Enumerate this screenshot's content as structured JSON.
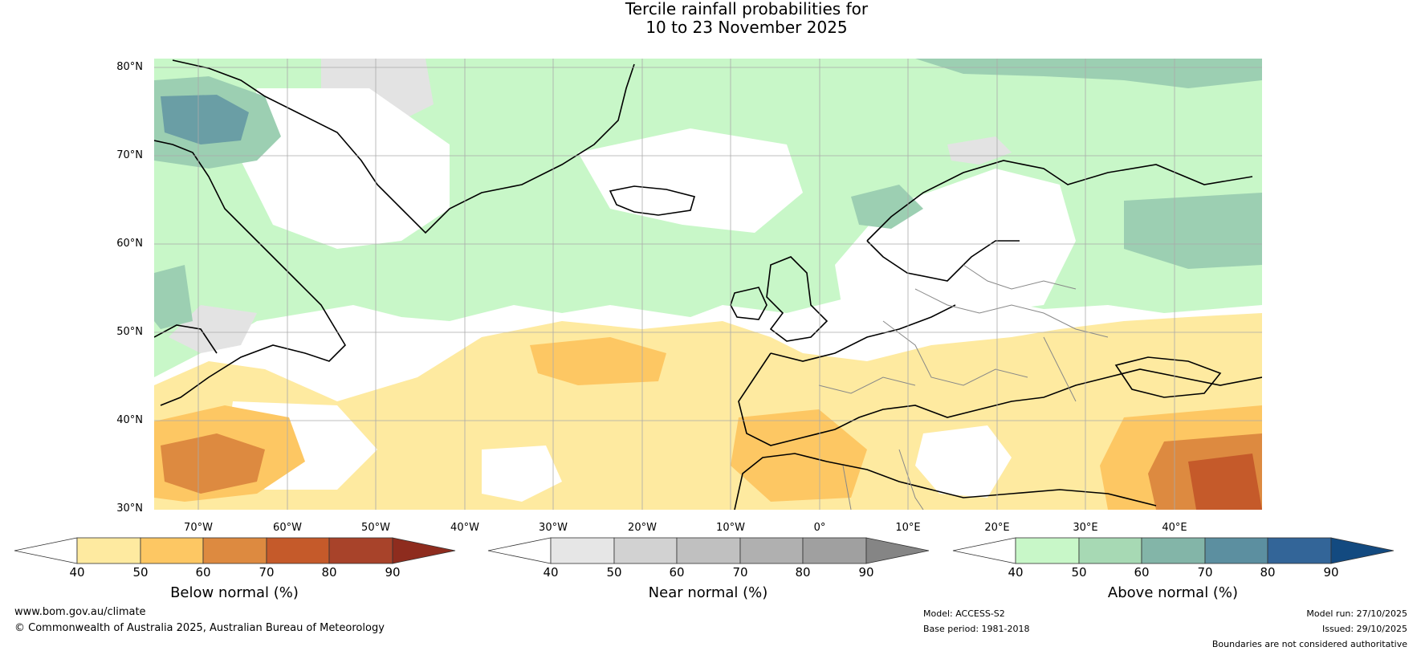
{
  "title": {
    "line1": "Tercile rainfall probabilities for",
    "line2": "10 to 23 November 2025"
  },
  "map": {
    "lat_labels": [
      "80°N",
      "70°N",
      "60°N",
      "50°N",
      "40°N",
      "30°N"
    ],
    "lon_labels": [
      "70°W",
      "60°W",
      "50°W",
      "40°W",
      "30°W",
      "20°W",
      "10°W",
      "0°",
      "10°E",
      "20°E",
      "30°E",
      "40°E"
    ],
    "colors": {
      "land_outline": "#000000",
      "borders": "#888888",
      "gridlines": "#aaaaaa"
    }
  },
  "legends": [
    {
      "label": "Below normal (%)",
      "ticks": [
        "40",
        "50",
        "60",
        "70",
        "80",
        "90"
      ],
      "colors": [
        "#ffffff",
        "#feeaa0",
        "#fdc763",
        "#dd8a40",
        "#c55a2a",
        "#a8432a",
        "#8e2c1e"
      ]
    },
    {
      "label": "Near normal (%)",
      "ticks": [
        "40",
        "50",
        "60",
        "70",
        "80",
        "90"
      ],
      "colors": [
        "#ffffff",
        "#e6e6e6",
        "#d2d2d2",
        "#c0c0c0",
        "#b0b0b0",
        "#a0a0a0",
        "#858585"
      ]
    },
    {
      "label": "Above normal (%)",
      "ticks": [
        "40",
        "50",
        "60",
        "70",
        "80",
        "90"
      ],
      "colors": [
        "#ffffff",
        "#c8f7c8",
        "#a7d9b4",
        "#83b5a8",
        "#5c8fa0",
        "#336598",
        "#134a80"
      ]
    }
  ],
  "footer": {
    "website": "www.bom.gov.au/climate",
    "copyright": "© Commonwealth of Australia 2025, Australian Bureau of Meteorology",
    "model": "Model: ACCESS-S2",
    "base_period": "Base period: 1981-2018",
    "model_run": "Model run: 27/10/2025",
    "issued": "Issued: 29/10/2025",
    "disclaimer": "Boundaries are not considered authoritative"
  }
}
